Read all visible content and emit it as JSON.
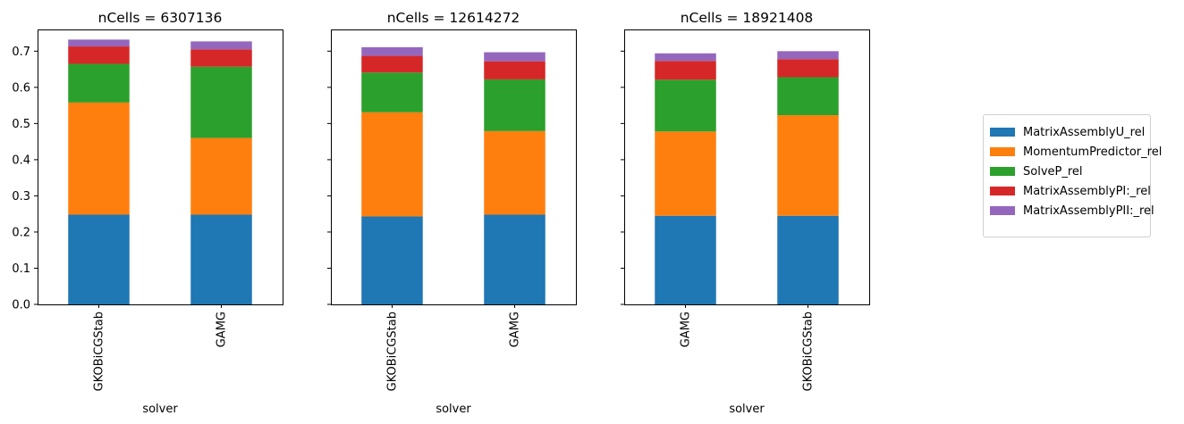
{
  "chart_data": {
    "type": "bar",
    "stacked": true,
    "shared_ylim": [
      0,
      0.76
    ],
    "yticks": [
      "0.0",
      "0.1",
      "0.2",
      "0.3",
      "0.4",
      "0.5",
      "0.6",
      "0.7"
    ],
    "ytick_values": [
      0,
      0.1,
      0.2,
      0.3,
      0.4,
      0.5,
      0.6,
      0.7
    ],
    "xlabel": "solver",
    "legend": {
      "position": "right",
      "entries": [
        "MatrixAssemblyU_rel",
        "MomentumPredictor_rel",
        "SolveP_rel",
        "MatrixAssemblyPI:_rel",
        "MatrixAssemblyPII:_rel"
      ]
    },
    "series_colors": [
      "#1f77b4",
      "#ff7f0e",
      "#2ca02c",
      "#d62728",
      "#9467bd"
    ],
    "panels": [
      {
        "title": "nCells = 6307136",
        "categories": [
          "GKOBiCGStab",
          "GAMG"
        ],
        "series": [
          {
            "name": "MatrixAssemblyU_rel",
            "values": [
              0.248,
              0.248
            ]
          },
          {
            "name": "MomentumPredictor_rel",
            "values": [
              0.31,
              0.212
            ]
          },
          {
            "name": "SolveP_rel",
            "values": [
              0.107,
              0.197
            ]
          },
          {
            "name": "MatrixAssemblyPI:_rel",
            "values": [
              0.048,
              0.048
            ]
          },
          {
            "name": "MatrixAssemblyPII:_rel",
            "values": [
              0.019,
              0.022
            ]
          }
        ]
      },
      {
        "title": "nCells = 12614272",
        "categories": [
          "GKOBiCGStab",
          "GAMG"
        ],
        "series": [
          {
            "name": "MatrixAssemblyU_rel",
            "values": [
              0.243,
              0.248
            ]
          },
          {
            "name": "MomentumPredictor_rel",
            "values": [
              0.288,
              0.231
            ]
          },
          {
            "name": "SolveP_rel",
            "values": [
              0.11,
              0.143
            ]
          },
          {
            "name": "MatrixAssemblyPI:_rel",
            "values": [
              0.046,
              0.05
            ]
          },
          {
            "name": "MatrixAssemblyPII:_rel",
            "values": [
              0.024,
              0.025
            ]
          }
        ]
      },
      {
        "title": "nCells = 18921408",
        "categories": [
          "GAMG",
          "GKOBiCGStab"
        ],
        "series": [
          {
            "name": "MatrixAssemblyU_rel",
            "values": [
              0.245,
              0.245
            ]
          },
          {
            "name": "MomentumPredictor_rel",
            "values": [
              0.233,
              0.278
            ]
          },
          {
            "name": "SolveP_rel",
            "values": [
              0.143,
              0.105
            ]
          },
          {
            "name": "MatrixAssemblyPI:_rel",
            "values": [
              0.052,
              0.05
            ]
          },
          {
            "name": "MatrixAssemblyPII:_rel",
            "values": [
              0.021,
              0.022
            ]
          }
        ]
      }
    ]
  }
}
